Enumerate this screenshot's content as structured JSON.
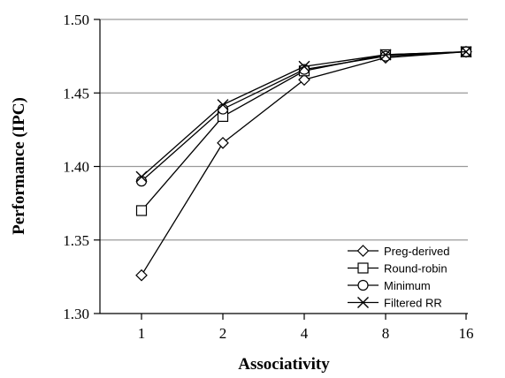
{
  "chart_data": {
    "type": "line",
    "title": "",
    "xlabel": "Associativity",
    "ylabel": "Performance (IPC)",
    "categories": [
      "1",
      "2",
      "4",
      "8",
      "16"
    ],
    "ylim": [
      1.3,
      1.5
    ],
    "yticks": [
      "1.30",
      "1.35",
      "1.40",
      "1.45",
      "1.50"
    ],
    "grid": "horizontal",
    "legend_position": "bottom-right",
    "series": [
      {
        "name": "Preg-derived",
        "marker": "diamond",
        "values": [
          1.326,
          1.416,
          1.459,
          1.474,
          1.478
        ]
      },
      {
        "name": "Round-robin",
        "marker": "square",
        "values": [
          1.37,
          1.434,
          1.465,
          1.476,
          1.478
        ]
      },
      {
        "name": "Minimum",
        "marker": "circle",
        "values": [
          1.39,
          1.439,
          1.466,
          1.475,
          1.478
        ]
      },
      {
        "name": "Filtered RR",
        "marker": "x",
        "values": [
          1.393,
          1.442,
          1.468,
          1.476,
          1.478
        ]
      }
    ]
  }
}
